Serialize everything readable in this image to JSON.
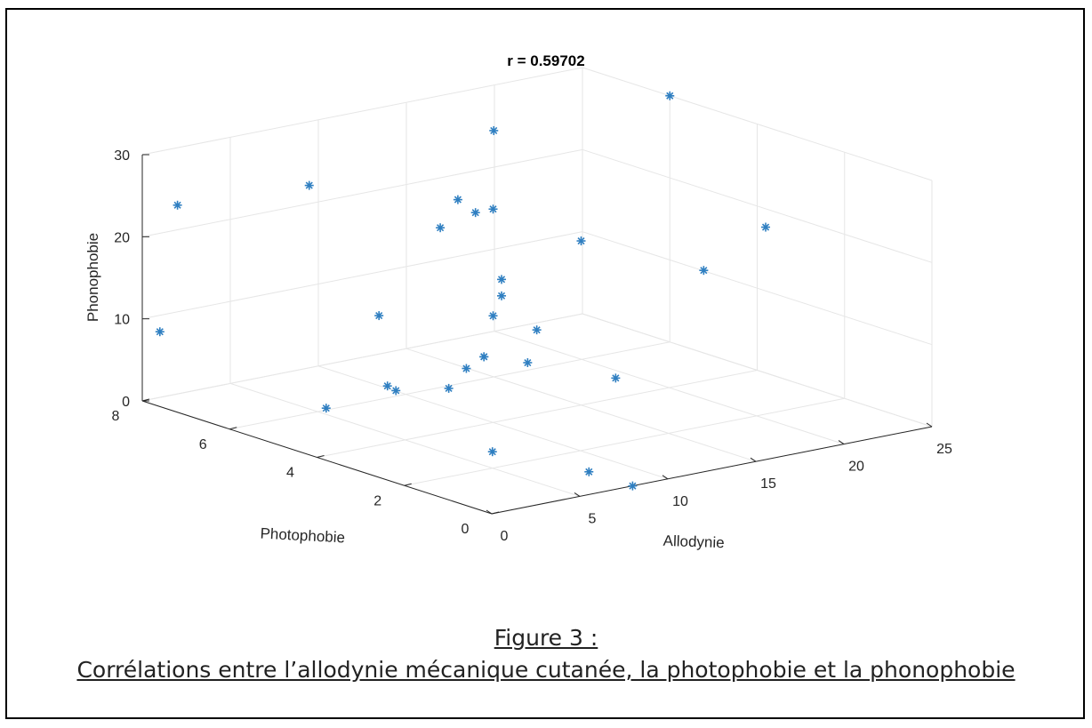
{
  "chart_data": {
    "type": "scatter",
    "title": "r = 0.59702",
    "xlabel": "Allodynie",
    "ylabel": "Photophobie",
    "zlabel": "Phonophobie",
    "xlim": [
      0,
      25
    ],
    "ylim": [
      0,
      8
    ],
    "zlim": [
      0,
      30
    ],
    "xticks": [
      "0",
      "5",
      "10",
      "15",
      "20",
      "25"
    ],
    "yticks": [
      "0",
      "2",
      "4",
      "6",
      "8"
    ],
    "zticks": [
      "0",
      "10",
      "20",
      "30"
    ],
    "grid": true,
    "marker_color": "#2f7fc1",
    "points": [
      {
        "x": 1,
        "y": 8,
        "z": 8
      },
      {
        "x": 2,
        "y": 8,
        "z": 23
      },
      {
        "x": 3,
        "y": 5,
        "z": 3
      },
      {
        "x": 7,
        "y": 7,
        "z": 25
      },
      {
        "x": 2,
        "y": 3,
        "z": 9
      },
      {
        "x": 7,
        "y": 4,
        "z": 25
      },
      {
        "x": 6,
        "y": 5,
        "z": 13
      },
      {
        "x": 7,
        "y": 3,
        "z": 11
      },
      {
        "x": 4,
        "y": 4,
        "z": 7
      },
      {
        "x": 5,
        "y": 3,
        "z": 8
      },
      {
        "x": 8,
        "y": 4,
        "z": 28
      },
      {
        "x": 9,
        "y": 4,
        "z": 26
      },
      {
        "x": 8,
        "y": 3,
        "z": 20
      },
      {
        "x": 8,
        "y": 3,
        "z": 18
      },
      {
        "x": 10,
        "y": 4,
        "z": 26
      },
      {
        "x": 7,
        "y": 3,
        "z": 11
      },
      {
        "x": 6,
        "y": 3,
        "z": 10
      },
      {
        "x": 7,
        "y": 2,
        "z": 12
      },
      {
        "x": 10,
        "y": 4,
        "z": 13
      },
      {
        "x": 10,
        "y": 3,
        "z": 13
      },
      {
        "x": 5,
        "y": 2,
        "z": 2
      },
      {
        "x": 8,
        "y": 1,
        "z": 0
      },
      {
        "x": 15,
        "y": 4,
        "z": 20
      },
      {
        "x": 15,
        "y": 6,
        "z": 30
      },
      {
        "x": 12,
        "y": 2,
        "z": 8
      },
      {
        "x": 8,
        "y": 0,
        "z": 0
      },
      {
        "x": 17,
        "y": 2,
        "z": 19
      },
      {
        "x": 25,
        "y": 6,
        "z": 30
      },
      {
        "x": 23,
        "y": 3,
        "z": 20
      }
    ]
  },
  "caption": {
    "line1": "Figure 3 :",
    "line2": "Corrélations entre l’allodynie mécanique cutanée, la photophobie et la phonophobie"
  }
}
